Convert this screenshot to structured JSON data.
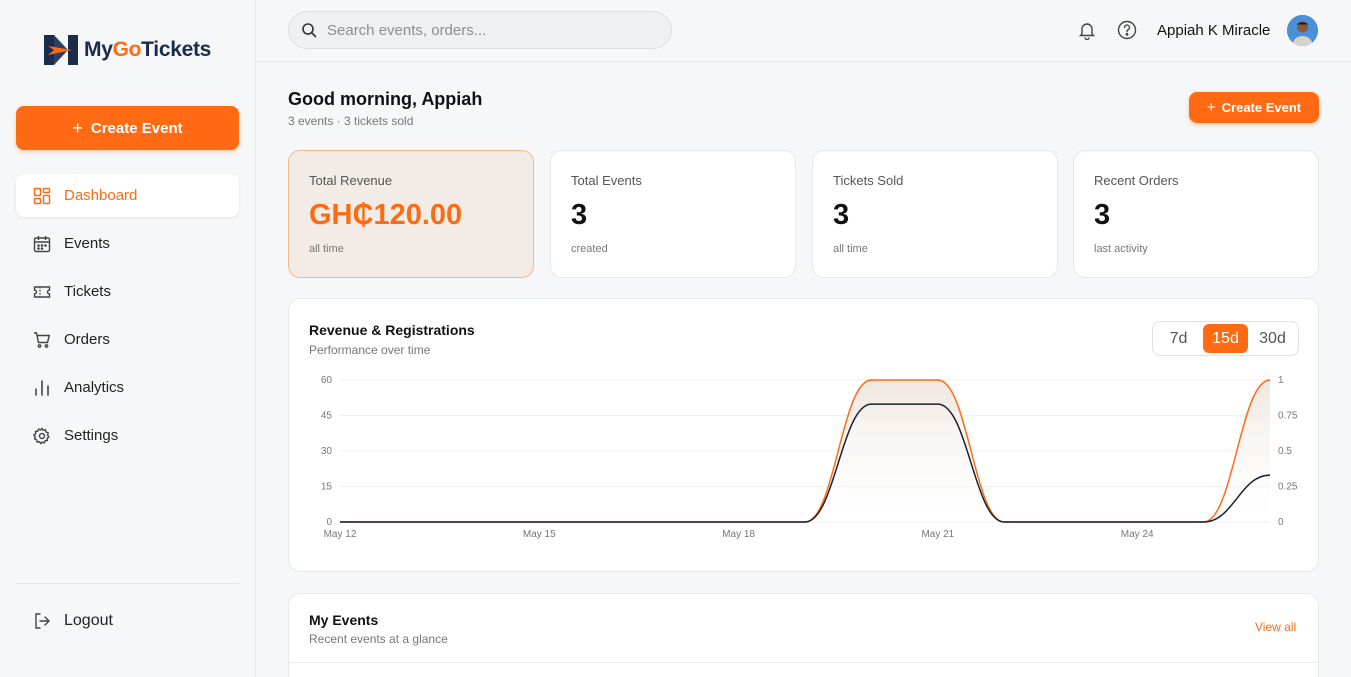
{
  "brand": {
    "name_prefix": "My",
    "name_go": "Go",
    "name_suffix": "Tickets"
  },
  "sidebar": {
    "create_label": "Create Event",
    "items": [
      {
        "label": "Dashboard",
        "icon": "dashboard-icon",
        "active": true
      },
      {
        "label": "Events",
        "icon": "calendar-icon"
      },
      {
        "label": "Tickets",
        "icon": "ticket-icon"
      },
      {
        "label": "Orders",
        "icon": "cart-icon"
      },
      {
        "label": "Analytics",
        "icon": "bar-chart-icon"
      },
      {
        "label": "Settings",
        "icon": "gear-icon"
      }
    ],
    "logout_label": "Logout"
  },
  "topbar": {
    "search_placeholder": "Search events, orders...",
    "user_name": "Appiah K Miracle"
  },
  "header": {
    "greeting": "Good morning, Appiah",
    "summary": "3 events · 3 tickets sold",
    "create_label": "Create Event"
  },
  "stats": [
    {
      "label": "Total Revenue",
      "value": "GH₵120.00",
      "sub": "all time"
    },
    {
      "label": "Total Events",
      "value": "3",
      "sub": "created"
    },
    {
      "label": "Tickets Sold",
      "value": "3",
      "sub": "all time"
    },
    {
      "label": "Recent Orders",
      "value": "3",
      "sub": "last activity"
    }
  ],
  "revenue_card": {
    "title": "Revenue & Registrations",
    "subtitle": "Performance over time",
    "ranges": [
      "7d",
      "15d",
      "30d"
    ],
    "active_range": "15d"
  },
  "chart_data": {
    "type": "line",
    "x": [
      "May 12",
      "May 13",
      "May 14",
      "May 15",
      "May 16",
      "May 17",
      "May 18",
      "May 19",
      "May 20",
      "May 21",
      "May 22",
      "May 23",
      "May 24",
      "May 25",
      "May 26"
    ],
    "x_tick_labels": [
      "May 12",
      "May 15",
      "May 18",
      "May 21",
      "May 24"
    ],
    "y_left_ticks": [
      "0",
      "15",
      "30",
      "45",
      "60"
    ],
    "y_right_ticks": [
      "0",
      "0.25",
      "0.5",
      "0.75",
      "1"
    ],
    "ylim_left": [
      0,
      60
    ],
    "ylim_right": [
      0,
      1
    ],
    "series": [
      {
        "axis": "left",
        "color": "#ff6a13",
        "area": true,
        "values": [
          0,
          0,
          0,
          0,
          0,
          0,
          0,
          0,
          60,
          60,
          0,
          0,
          0,
          0,
          60
        ]
      },
      {
        "axis": "right",
        "color": "#1a1f2e",
        "values": [
          0,
          0,
          0,
          0,
          0,
          0,
          0,
          0,
          0.83,
          0.83,
          0,
          0,
          0,
          0,
          0.33
        ]
      }
    ],
    "grid": "horizontal"
  },
  "events_card": {
    "title": "My Events",
    "subtitle": "Recent events at a glance",
    "view_all": "View all"
  }
}
